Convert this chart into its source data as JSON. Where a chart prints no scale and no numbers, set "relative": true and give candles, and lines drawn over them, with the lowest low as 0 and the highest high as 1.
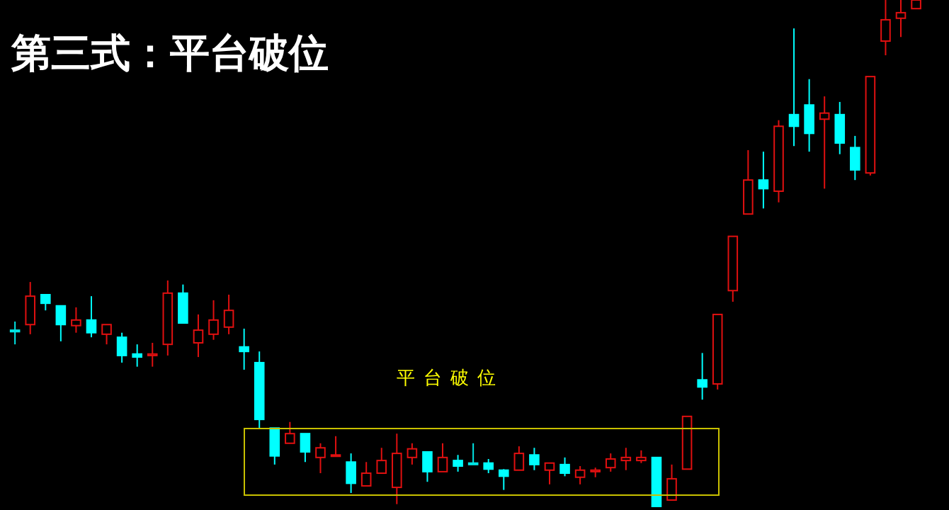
{
  "chart_data": {
    "type": "candlestick",
    "title": "第三式：平台破位",
    "relative": true,
    "annotations": [
      "平台破位"
    ],
    "categories": [
      null,
      null,
      null,
      null,
      null,
      null,
      null,
      null,
      null,
      null,
      null,
      null,
      null,
      null,
      null,
      null,
      null,
      null,
      null,
      null,
      null,
      null,
      null,
      null,
      null,
      null,
      null,
      null,
      null,
      null,
      null,
      null,
      null,
      null,
      null,
      null,
      null,
      null,
      null,
      null,
      null,
      null,
      null,
      null,
      null,
      null,
      null,
      null,
      null,
      null,
      null,
      null,
      null,
      null,
      null,
      null,
      null,
      null,
      null,
      null
    ],
    "ohlc": [
      [
        0.349,
        0.366,
        0.321,
        0.346
      ],
      [
        0.36,
        0.444,
        0.341,
        0.416
      ],
      [
        0.419,
        0.419,
        0.388,
        0.402
      ],
      [
        0.397,
        0.397,
        0.327,
        0.36
      ],
      [
        0.358,
        0.394,
        0.344,
        0.369
      ],
      [
        0.369,
        0.416,
        0.335,
        0.344
      ],
      [
        0.341,
        0.36,
        0.321,
        0.36
      ],
      [
        0.335,
        0.344,
        0.285,
        0.299
      ],
      [
        0.302,
        0.321,
        0.277,
        0.296
      ],
      [
        0.299,
        0.324,
        0.277,
        0.302
      ],
      [
        0.321,
        0.447,
        0.299,
        0.422
      ],
      [
        0.422,
        0.439,
        0.363,
        0.363
      ],
      [
        0.324,
        0.38,
        0.296,
        0.349
      ],
      [
        0.341,
        0.408,
        0.33,
        0.369
      ],
      [
        0.355,
        0.419,
        0.341,
        0.388
      ],
      [
        0.316,
        0.352,
        0.271,
        0.307
      ],
      [
        0.285,
        0.307,
        0.156,
        0.173
      ],
      [
        0.156,
        0.156,
        0.084,
        0.101
      ],
      [
        0.126,
        0.168,
        0.126,
        0.145
      ],
      [
        0.145,
        0.145,
        0.089,
        0.109
      ],
      [
        0.098,
        0.126,
        0.067,
        0.117
      ],
      [
        0.101,
        0.14,
        0.101,
        0.103
      ],
      [
        0.089,
        0.106,
        0.028,
        0.047
      ],
      [
        0.042,
        0.089,
        0.042,
        0.067
      ],
      [
        0.067,
        0.117,
        0.067,
        0.092
      ],
      [
        0.039,
        0.145,
        0.006,
        0.106
      ],
      [
        0.098,
        0.126,
        0.084,
        0.115
      ],
      [
        0.109,
        0.109,
        0.05,
        0.07
      ],
      [
        0.07,
        0.126,
        0.07,
        0.098
      ],
      [
        0.092,
        0.103,
        0.07,
        0.081
      ],
      [
        0.087,
        0.126,
        0.084,
        0.084
      ],
      [
        0.087,
        0.095,
        0.067,
        0.075
      ],
      [
        0.073,
        0.075,
        0.034,
        0.061
      ],
      [
        0.073,
        0.12,
        0.073,
        0.106
      ],
      [
        0.103,
        0.117,
        0.073,
        0.084
      ],
      [
        0.073,
        0.087,
        0.045,
        0.087
      ],
      [
        0.084,
        0.098,
        0.061,
        0.067
      ],
      [
        0.059,
        0.081,
        0.045,
        0.073
      ],
      [
        0.07,
        0.078,
        0.059,
        0.073
      ],
      [
        0.078,
        0.106,
        0.07,
        0.095
      ],
      [
        0.092,
        0.117,
        0.073,
        0.098
      ],
      [
        0.092,
        0.112,
        0.087,
        0.098
      ],
      [
        0.098,
        0.098,
        0,
        0
      ],
      [
        0.014,
        0.084,
        0.014,
        0.056
      ],
      [
        0.075,
        0.179,
        0.075,
        0.179
      ],
      [
        0.251,
        0.304,
        0.212,
        0.237
      ],
      [
        0.243,
        0.38,
        0.232,
        0.38
      ],
      [
        0.427,
        0.534,
        0.405,
        0.534
      ],
      [
        0.578,
        0.704,
        0.578,
        0.645
      ],
      [
        0.645,
        0.701,
        0.589,
        0.628
      ],
      [
        0.623,
        0.763,
        0.601,
        0.751
      ],
      [
        0.774,
        0.944,
        0.712,
        0.751
      ],
      [
        0.793,
        0.844,
        0.701,
        0.737
      ],
      [
        0.765,
        0.81,
        0.628,
        0.777
      ],
      [
        0.774,
        0.799,
        0.696,
        0.718
      ],
      [
        0.709,
        0.732,
        0.645,
        0.665
      ],
      [
        0.659,
        0.849,
        0.654,
        0.849
      ],
      [
        0.919,
        1,
        0.891,
        0.961
      ],
      [
        0.964,
        1,
        0.927,
        0.975
      ],
      [
        0.983,
        1,
        0.983,
        1
      ]
    ],
    "colors": [
      "#00e5e5",
      "#e01010",
      "#00ffff",
      "#00ffff",
      "#e01010",
      "#00ffff",
      "#e01010",
      "#00ffff",
      "#00ffff",
      "#e01010",
      "#e01010",
      "#00ffff",
      "#e01010",
      "#e01010",
      "#e01010",
      "#00ffff",
      "#00ffff",
      "#00ffff",
      "#e01010",
      "#00ffff",
      "#e01010",
      "#e01010",
      "#00ffff",
      "#e01010",
      "#e01010",
      "#e01010",
      "#e01010",
      "#00ffff",
      "#e01010",
      "#00ffff",
      "#00e5e5",
      "#00ffff",
      "#00ffff",
      "#e01010",
      "#00ffff",
      "#e01010",
      "#00ffff",
      "#e01010",
      "#e01010",
      "#e01010",
      "#e01010",
      "#e01010",
      "#00ffff",
      "#e01010",
      "#e01010",
      "#00ffff",
      "#e01010",
      "#e01010",
      "#e01010",
      "#00ffff",
      "#e01010",
      "#00ffff",
      "#00ffff",
      "#e01010",
      "#00ffff",
      "#00ffff",
      "#e01010",
      "#e01010",
      "#e01010",
      "#e01010"
    ]
  }
}
